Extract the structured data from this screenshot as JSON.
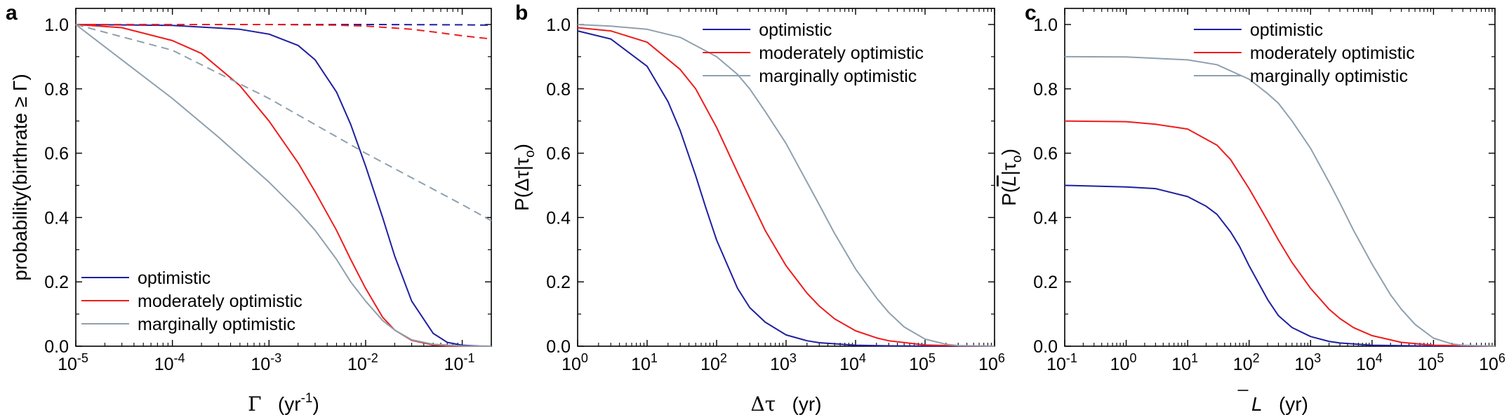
{
  "colors": {
    "optimistic": "#1f1fa0",
    "moderately": "#ee1c1c",
    "marginally": "#8fa0ae"
  },
  "chart_data": [
    {
      "type": "line",
      "panel": "a",
      "xscale": "log",
      "xlim": [
        1e-05,
        0.2
      ],
      "ylim": [
        0,
        1.05
      ],
      "x_ticks": [
        {
          "v": 1e-05,
          "base": "10",
          "exp": "-5"
        },
        {
          "v": 0.0001,
          "base": "10",
          "exp": "-4"
        },
        {
          "v": 0.001,
          "base": "10",
          "exp": "-3"
        },
        {
          "v": 0.01,
          "base": "10",
          "exp": "-2"
        },
        {
          "v": 0.1,
          "base": "10",
          "exp": "-1"
        }
      ],
      "y_ticks": [
        {
          "v": 0,
          "label": "0.0"
        },
        {
          "v": 0.2,
          "label": "0.2"
        },
        {
          "v": 0.4,
          "label": "0.4"
        },
        {
          "v": 0.6,
          "label": "0.6"
        },
        {
          "v": 0.8,
          "label": "0.8"
        },
        {
          "v": 1.0,
          "label": "1.0"
        }
      ],
      "xlabel": {
        "symbol": "Γ",
        "unit": "(yr",
        "unit_exp": "-1",
        "close": ")"
      },
      "ylabel": "probability(birthrate ≥ Γ)",
      "legend_position": "bottom-left",
      "legend": [
        {
          "name": "optimistic",
          "color_key": "optimistic"
        },
        {
          "name": "moderately optimistic",
          "color_key": "moderately"
        },
        {
          "name": "marginally optimistic",
          "color_key": "marginally"
        }
      ],
      "series": [
        {
          "color_key": "optimistic",
          "style": "solid",
          "x": [
            1e-05,
            0.0001,
            0.0005,
            0.001,
            0.002,
            0.003,
            0.005,
            0.007,
            0.01,
            0.015,
            0.02,
            0.03,
            0.05,
            0.07,
            0.1,
            0.15,
            0.2
          ],
          "y": [
            1.0,
            0.997,
            0.985,
            0.97,
            0.935,
            0.89,
            0.79,
            0.69,
            0.56,
            0.4,
            0.28,
            0.14,
            0.04,
            0.012,
            0.003,
            0.0005,
            0.0
          ]
        },
        {
          "color_key": "moderately",
          "style": "solid",
          "x": [
            1e-05,
            3e-05,
            0.0001,
            0.0002,
            0.0005,
            0.001,
            0.002,
            0.003,
            0.005,
            0.007,
            0.01,
            0.015,
            0.02,
            0.03,
            0.05,
            0.07,
            0.1,
            0.2
          ],
          "y": [
            1.0,
            0.99,
            0.95,
            0.91,
            0.81,
            0.7,
            0.57,
            0.48,
            0.36,
            0.27,
            0.18,
            0.09,
            0.05,
            0.018,
            0.004,
            0.001,
            0.0003,
            0.0
          ]
        },
        {
          "color_key": "marginally",
          "style": "solid",
          "x": [
            1e-05,
            3e-05,
            0.0001,
            0.0003,
            0.001,
            0.002,
            0.003,
            0.005,
            0.007,
            0.01,
            0.015,
            0.02,
            0.03,
            0.05,
            0.1,
            0.2
          ],
          "y": [
            1.0,
            0.89,
            0.77,
            0.65,
            0.51,
            0.42,
            0.36,
            0.27,
            0.2,
            0.14,
            0.08,
            0.05,
            0.02,
            0.006,
            0.0008,
            0.0
          ]
        },
        {
          "color_key": "optimistic",
          "style": "dashed",
          "x": [
            1e-05,
            0.001,
            0.01,
            0.1,
            0.2
          ],
          "y": [
            1.0,
            1.0,
            1.0,
            0.999,
            0.998
          ]
        },
        {
          "color_key": "moderately",
          "style": "dashed",
          "x": [
            1e-05,
            0.001,
            0.005,
            0.01,
            0.03,
            0.05,
            0.1,
            0.2
          ],
          "y": [
            1.0,
            1.0,
            0.998,
            0.995,
            0.985,
            0.977,
            0.965,
            0.955
          ]
        },
        {
          "color_key": "marginally",
          "style": "dashed",
          "x": [
            1e-05,
            0.0001,
            0.001,
            0.01,
            0.1,
            0.2
          ],
          "y": [
            1.0,
            0.92,
            0.77,
            0.6,
            0.44,
            0.39
          ]
        }
      ]
    },
    {
      "type": "line",
      "panel": "b",
      "xscale": "log",
      "xlim": [
        1,
        1000000
      ],
      "ylim": [
        0,
        1.05
      ],
      "x_ticks": [
        {
          "v": 1,
          "base": "10",
          "exp": "0"
        },
        {
          "v": 10,
          "base": "10",
          "exp": "1"
        },
        {
          "v": 100,
          "base": "10",
          "exp": "2"
        },
        {
          "v": 1000,
          "base": "10",
          "exp": "3"
        },
        {
          "v": 10000,
          "base": "10",
          "exp": "4"
        },
        {
          "v": 100000,
          "base": "10",
          "exp": "5"
        },
        {
          "v": 1000000,
          "base": "10",
          "exp": "6"
        }
      ],
      "y_ticks": [
        {
          "v": 0,
          "label": "0.0"
        },
        {
          "v": 0.2,
          "label": "0.2"
        },
        {
          "v": 0.4,
          "label": "0.4"
        },
        {
          "v": 0.6,
          "label": "0.6"
        },
        {
          "v": 0.8,
          "label": "0.8"
        },
        {
          "v": 1.0,
          "label": "1.0"
        }
      ],
      "xlabel": {
        "symbol": "Δτ",
        "unit": "(yr)"
      },
      "ylabel": {
        "pre": "P(Δτ|τ",
        "sub": "o",
        "post": ")"
      },
      "legend_position": "top-right",
      "legend": [
        {
          "name": "optimistic",
          "color_key": "optimistic"
        },
        {
          "name": "moderately optimistic",
          "color_key": "moderately"
        },
        {
          "name": "marginally optimistic",
          "color_key": "marginally"
        }
      ],
      "series": [
        {
          "color_key": "optimistic",
          "style": "solid",
          "x": [
            1,
            3,
            10,
            20,
            30,
            50,
            70,
            100,
            200,
            300,
            500,
            1000,
            2000,
            3000,
            10000,
            30000,
            100000,
            1000000
          ],
          "y": [
            0.98,
            0.955,
            0.87,
            0.76,
            0.67,
            0.53,
            0.43,
            0.33,
            0.18,
            0.12,
            0.075,
            0.035,
            0.017,
            0.011,
            0.003,
            0.001,
            0.0002,
            0.0
          ]
        },
        {
          "color_key": "moderately",
          "style": "solid",
          "x": [
            1,
            3,
            10,
            30,
            50,
            100,
            200,
            300,
            500,
            1000,
            2000,
            3000,
            5000,
            10000,
            20000,
            30000,
            100000,
            300000,
            1000000
          ],
          "y": [
            0.99,
            0.98,
            0.945,
            0.86,
            0.8,
            0.68,
            0.54,
            0.46,
            0.36,
            0.25,
            0.165,
            0.125,
            0.085,
            0.048,
            0.026,
            0.017,
            0.004,
            0.001,
            0.0
          ]
        },
        {
          "color_key": "marginally",
          "style": "solid",
          "x": [
            1,
            3,
            10,
            30,
            100,
            200,
            300,
            500,
            1000,
            2000,
            3000,
            5000,
            10000,
            20000,
            30000,
            50000,
            100000,
            200000,
            300000,
            1000000
          ],
          "y": [
            1.0,
            0.995,
            0.985,
            0.96,
            0.9,
            0.845,
            0.8,
            0.73,
            0.63,
            0.51,
            0.44,
            0.35,
            0.24,
            0.15,
            0.105,
            0.06,
            0.022,
            0.006,
            0.002,
            0.0
          ]
        }
      ]
    },
    {
      "type": "line",
      "panel": "c",
      "xscale": "log",
      "xlim": [
        0.1,
        1000000
      ],
      "ylim": [
        0,
        1.05
      ],
      "x_ticks": [
        {
          "v": 0.1,
          "base": "10",
          "exp": "-1"
        },
        {
          "v": 1,
          "base": "10",
          "exp": "0"
        },
        {
          "v": 10,
          "base": "10",
          "exp": "1"
        },
        {
          "v": 100,
          "base": "10",
          "exp": "2"
        },
        {
          "v": 1000,
          "base": "10",
          "exp": "3"
        },
        {
          "v": 10000,
          "base": "10",
          "exp": "4"
        },
        {
          "v": 100000,
          "base": "10",
          "exp": "5"
        },
        {
          "v": 1000000,
          "base": "10",
          "exp": "6"
        }
      ],
      "y_ticks": [
        {
          "v": 0,
          "label": "0.0"
        },
        {
          "v": 0.2,
          "label": "0.2"
        },
        {
          "v": 0.4,
          "label": "0.4"
        },
        {
          "v": 0.6,
          "label": "0.6"
        },
        {
          "v": 0.8,
          "label": "0.8"
        },
        {
          "v": 1.0,
          "label": "1.0"
        }
      ],
      "xlabel": {
        "symbol": "L",
        "unit": "(yr)"
      },
      "ylabel": {
        "pre": "P(",
        "bar": "L",
        "mid": "|τ",
        "sub": "o",
        "post": ")"
      },
      "legend_position": "top-right",
      "legend": [
        {
          "name": "optimistic",
          "color_key": "optimistic"
        },
        {
          "name": "moderately optimistic",
          "color_key": "moderately"
        },
        {
          "name": "marginally optimistic",
          "color_key": "marginally"
        }
      ],
      "series": [
        {
          "color_key": "optimistic",
          "style": "solid",
          "x": [
            0.1,
            1,
            3,
            10,
            20,
            30,
            50,
            70,
            100,
            200,
            300,
            500,
            1000,
            2000,
            3000,
            10000,
            100000,
            1000000
          ],
          "y": [
            0.5,
            0.495,
            0.49,
            0.465,
            0.435,
            0.41,
            0.355,
            0.31,
            0.25,
            0.145,
            0.095,
            0.058,
            0.03,
            0.015,
            0.01,
            0.003,
            0.0002,
            0.0
          ]
        },
        {
          "color_key": "moderately",
          "style": "solid",
          "x": [
            0.1,
            1,
            3,
            10,
            30,
            50,
            100,
            200,
            300,
            500,
            1000,
            2000,
            3000,
            5000,
            10000,
            30000,
            100000,
            1000000
          ],
          "y": [
            0.7,
            0.698,
            0.69,
            0.675,
            0.625,
            0.58,
            0.49,
            0.39,
            0.33,
            0.26,
            0.18,
            0.115,
            0.086,
            0.058,
            0.033,
            0.012,
            0.003,
            0.0
          ]
        },
        {
          "color_key": "marginally",
          "style": "solid",
          "x": [
            0.1,
            1,
            10,
            30,
            100,
            200,
            300,
            500,
            1000,
            2000,
            3000,
            5000,
            10000,
            20000,
            30000,
            50000,
            100000,
            200000,
            300000,
            1000000
          ],
          "y": [
            0.9,
            0.899,
            0.89,
            0.875,
            0.83,
            0.785,
            0.755,
            0.7,
            0.615,
            0.51,
            0.445,
            0.36,
            0.255,
            0.16,
            0.115,
            0.068,
            0.025,
            0.007,
            0.003,
            0.0
          ]
        }
      ]
    }
  ]
}
